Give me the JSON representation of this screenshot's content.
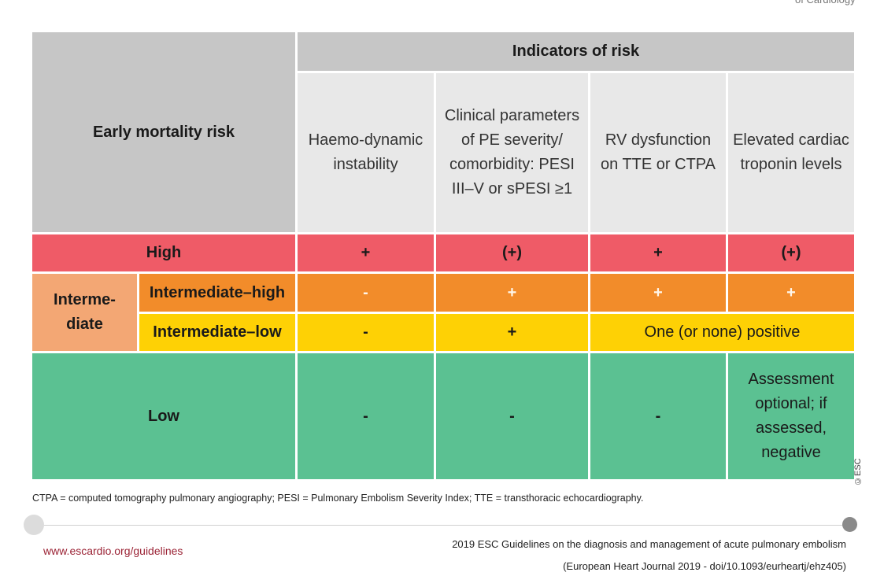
{
  "corner_text": "of Cardiology",
  "header": {
    "early_mortality_risk": "Early mortality risk",
    "indicators_of_risk": "Indicators of risk",
    "columns": [
      "Haemo-dynamic instability",
      "Clinical parameters of PE severity/ comorbidity: PESI III–V or sPESI ≥1",
      "RV dysfunction on TTE or CTPA",
      "Elevated cardiac troponin levels"
    ]
  },
  "rows": {
    "high": {
      "label": "High",
      "values": [
        "+",
        "(+)",
        "+",
        "(+)"
      ]
    },
    "intermediate": {
      "label": "Interme-diate"
    },
    "intermediate_high": {
      "label": "Intermediate–high",
      "values": [
        "-",
        "+",
        "+",
        "+"
      ]
    },
    "intermediate_low": {
      "label": "Intermediate–low",
      "values": [
        "-",
        "+"
      ],
      "combined": "One (or none) positive"
    },
    "low": {
      "label": "Low",
      "values": [
        "-",
        "-",
        "-",
        "Assessment optional; if assessed, negative"
      ]
    }
  },
  "footnote": "CTPA = computed tomography pulmonary angiography; PESI = Pulmonary Embolism Severity Index; TTE  = transthoracic echocardiography.",
  "footer": {
    "url": "www.escardio.org/guidelines",
    "citation_line1": "2019 ESC Guidelines on the diagnosis and management of acute pulmonary embolism",
    "citation_line2": "(European Heart Journal 2019 - doi/10.1093/eurheartj/ehz405)"
  },
  "copyright": "©ESC",
  "colors": {
    "high": "#ef5b67",
    "intermediate_high": "#f28c2a",
    "intermediate_low": "#fed105",
    "intermediate_group": "#f3a774",
    "low": "#5bc192",
    "header_dark": "#c6c6c6",
    "header_light": "#e8e8e8",
    "url": "#9b2335"
  }
}
